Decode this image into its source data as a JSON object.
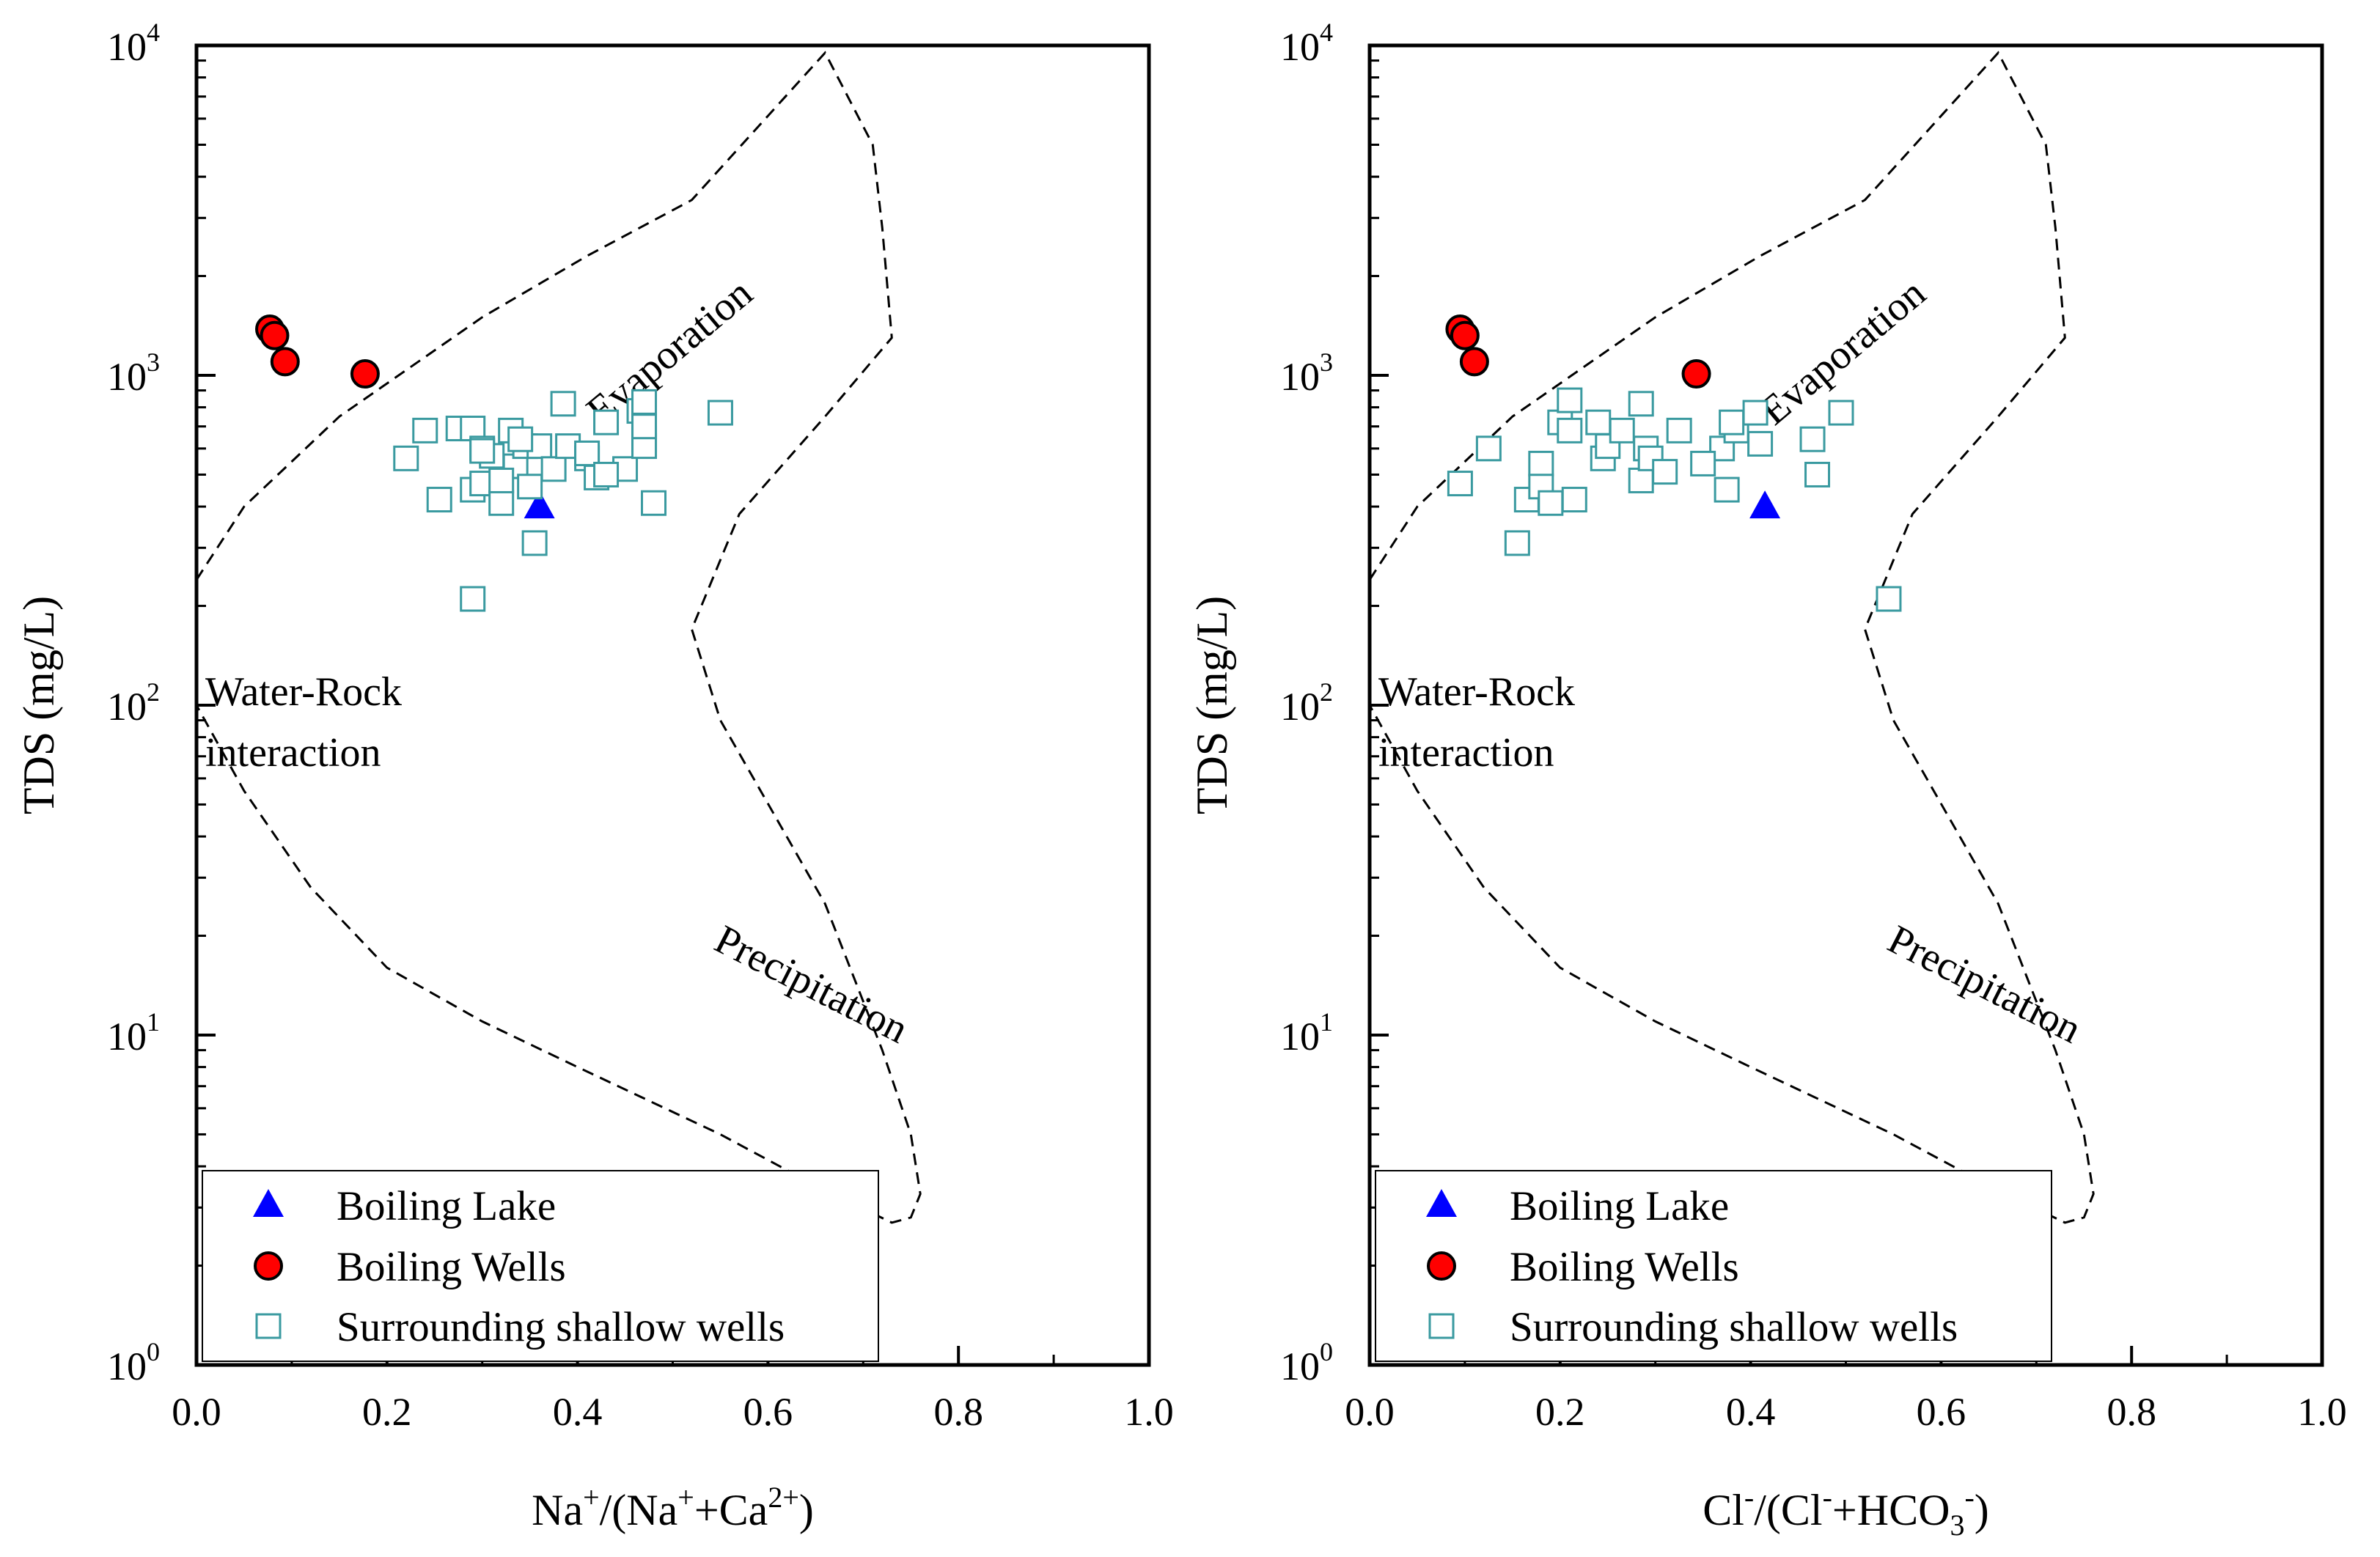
{
  "colors": {
    "boiling_lake": "#0000ff",
    "boiling_wells": "#ff0000",
    "shallow_wells": "#3a9aa0",
    "frame": "#000000"
  },
  "chart_data": [
    {
      "type": "scatter",
      "id": "left",
      "xlabel": {
        "base": "Na",
        "sup1": "+",
        "mid": "/(Na",
        "sup2": "+",
        "plus": "+Ca",
        "sup3": "2+",
        "end": ")"
      },
      "ylabel": "TDS (mg/L)",
      "xlim": [
        0.0,
        1.0
      ],
      "ylim": [
        1,
        10000
      ],
      "yscale": "log",
      "x_ticks": [
        "0.0",
        "0.2",
        "0.4",
        "0.6",
        "0.8",
        "1.0"
      ],
      "y_ticks": [
        {
          "base": "10",
          "exp": "0"
        },
        {
          "base": "10",
          "exp": "1"
        },
        {
          "base": "10",
          "exp": "2"
        },
        {
          "base": "10",
          "exp": "3"
        },
        {
          "base": "10",
          "exp": "4"
        }
      ],
      "region_labels": {
        "evaporation": "Evaporation",
        "water_rock_1": "Water-Rock",
        "water_rock_2": "interaction",
        "precipitation": "Precipitation"
      },
      "legend": [
        "Boiling Lake",
        "Boiling Wells",
        "Surrounding shallow wells"
      ],
      "series": [
        {
          "name": "Boiling Lake",
          "marker": "triangle",
          "points": [
            [
              0.36,
              400
            ]
          ]
        },
        {
          "name": "Boiling Wells",
          "marker": "circle",
          "points": [
            [
              0.077,
              1380
            ],
            [
              0.082,
              1320
            ],
            [
              0.093,
              1100
            ],
            [
              0.177,
              1010
            ]
          ]
        },
        {
          "name": "Surrounding shallow wells",
          "marker": "square",
          "points": [
            [
              0.22,
              560
            ],
            [
              0.24,
              680
            ],
            [
              0.255,
              420
            ],
            [
              0.275,
              690
            ],
            [
              0.29,
              690
            ],
            [
              0.29,
              450
            ],
            [
              0.3,
              600
            ],
            [
              0.3,
              470
            ],
            [
              0.31,
              570
            ],
            [
              0.32,
              410
            ],
            [
              0.33,
              680
            ],
            [
              0.335,
              530
            ],
            [
              0.345,
              610
            ],
            [
              0.35,
              460
            ],
            [
              0.355,
              310
            ],
            [
              0.36,
              610
            ],
            [
              0.375,
              520
            ],
            [
              0.385,
              820
            ],
            [
              0.39,
              610
            ],
            [
              0.41,
              560
            ],
            [
              0.42,
              490
            ],
            [
              0.43,
              720
            ],
            [
              0.45,
              520
            ],
            [
              0.465,
              780
            ],
            [
              0.47,
              640
            ],
            [
              0.47,
              610
            ],
            [
              0.48,
              410
            ],
            [
              0.55,
              770
            ],
            [
              0.29,
              210
            ],
            [
              0.3,
              590
            ],
            [
              0.32,
              480
            ],
            [
              0.34,
              640
            ],
            [
              0.41,
              580
            ],
            [
              0.43,
              500
            ],
            [
              0.47,
              830
            ],
            [
              0.47,
              700
            ]
          ]
        }
      ],
      "envelope": [
        [
          0.0,
          240
        ],
        [
          0.05,
          400
        ],
        [
          0.15,
          750
        ],
        [
          0.3,
          1500
        ],
        [
          0.41,
          2300
        ],
        [
          0.52,
          3400
        ],
        [
          0.66,
          9500
        ],
        [
          0.71,
          5000
        ],
        [
          0.72,
          2800
        ],
        [
          0.73,
          1300
        ],
        [
          0.66,
          750
        ],
        [
          0.57,
          380
        ],
        [
          0.52,
          170
        ],
        [
          0.55,
          90
        ],
        [
          0.66,
          25
        ],
        [
          0.72,
          9
        ],
        [
          0.75,
          5
        ],
        [
          0.76,
          3.3
        ],
        [
          0.75,
          2.8
        ],
        [
          0.73,
          2.7
        ],
        [
          0.65,
          3.5
        ],
        [
          0.55,
          5
        ],
        [
          0.4,
          8
        ],
        [
          0.3,
          11
        ],
        [
          0.2,
          16
        ],
        [
          0.12,
          28
        ],
        [
          0.05,
          55
        ],
        [
          0.0,
          100
        ]
      ]
    },
    {
      "type": "scatter",
      "id": "right",
      "xlabel": {
        "base": "Cl",
        "sup1": "-",
        "mid": "/(Cl",
        "sup2": "-",
        "plus": "+HCO",
        "sub3": "3",
        "sup3": "-",
        "end": ")"
      },
      "ylabel": "TDS (mg/L)",
      "xlim": [
        0.0,
        1.0
      ],
      "ylim": [
        1,
        10000
      ],
      "yscale": "log",
      "x_ticks": [
        "0.0",
        "0.2",
        "0.4",
        "0.6",
        "0.8",
        "1.0"
      ],
      "y_ticks": [
        {
          "base": "10",
          "exp": "0"
        },
        {
          "base": "10",
          "exp": "1"
        },
        {
          "base": "10",
          "exp": "2"
        },
        {
          "base": "10",
          "exp": "3"
        },
        {
          "base": "10",
          "exp": "4"
        }
      ],
      "region_labels": {
        "evaporation": "Evaporation",
        "water_rock_1": "Water-Rock",
        "water_rock_2": "interaction",
        "precipitation": "Precipitation"
      },
      "legend": [
        "Boiling Lake",
        "Boiling Wells",
        "Surrounding shallow wells"
      ],
      "series": [
        {
          "name": "Boiling Lake",
          "marker": "triangle",
          "points": [
            [
              0.415,
              400
            ]
          ]
        },
        {
          "name": "Boiling Wells",
          "marker": "circle",
          "points": [
            [
              0.095,
              1380
            ],
            [
              0.1,
              1320
            ],
            [
              0.11,
              1100
            ],
            [
              0.343,
              1010
            ]
          ]
        },
        {
          "name": "Surrounding shallow wells",
          "marker": "square",
          "points": [
            [
              0.095,
              470
            ],
            [
              0.125,
              600
            ],
            [
              0.155,
              310
            ],
            [
              0.165,
              420
            ],
            [
              0.18,
              540
            ],
            [
              0.18,
              460
            ],
            [
              0.19,
              410
            ],
            [
              0.2,
              720
            ],
            [
              0.21,
              840
            ],
            [
              0.21,
              680
            ],
            [
              0.215,
              420
            ],
            [
              0.24,
              720
            ],
            [
              0.245,
              560
            ],
            [
              0.25,
              610
            ],
            [
              0.265,
              680
            ],
            [
              0.285,
              820
            ],
            [
              0.285,
              480
            ],
            [
              0.29,
              600
            ],
            [
              0.295,
              560
            ],
            [
              0.31,
              510
            ],
            [
              0.325,
              680
            ],
            [
              0.37,
              600
            ],
            [
              0.375,
              450
            ],
            [
              0.385,
              680
            ],
            [
              0.405,
              770
            ],
            [
              0.41,
              620
            ],
            [
              0.465,
              640
            ],
            [
              0.47,
              500
            ],
            [
              0.495,
              770
            ],
            [
              0.545,
              210
            ],
            [
              0.35,
              540
            ],
            [
              0.38,
              720
            ]
          ]
        }
      ],
      "envelope": [
        [
          0.0,
          240
        ],
        [
          0.05,
          400
        ],
        [
          0.15,
          750
        ],
        [
          0.3,
          1500
        ],
        [
          0.41,
          2300
        ],
        [
          0.52,
          3400
        ],
        [
          0.66,
          9500
        ],
        [
          0.71,
          5000
        ],
        [
          0.72,
          2800
        ],
        [
          0.73,
          1300
        ],
        [
          0.66,
          750
        ],
        [
          0.57,
          380
        ],
        [
          0.52,
          170
        ],
        [
          0.55,
          90
        ],
        [
          0.66,
          25
        ],
        [
          0.72,
          9
        ],
        [
          0.75,
          5
        ],
        [
          0.76,
          3.3
        ],
        [
          0.75,
          2.8
        ],
        [
          0.73,
          2.7
        ],
        [
          0.65,
          3.5
        ],
        [
          0.55,
          5
        ],
        [
          0.4,
          8
        ],
        [
          0.3,
          11
        ],
        [
          0.2,
          16
        ],
        [
          0.12,
          28
        ],
        [
          0.05,
          55
        ],
        [
          0.0,
          100
        ]
      ]
    }
  ]
}
